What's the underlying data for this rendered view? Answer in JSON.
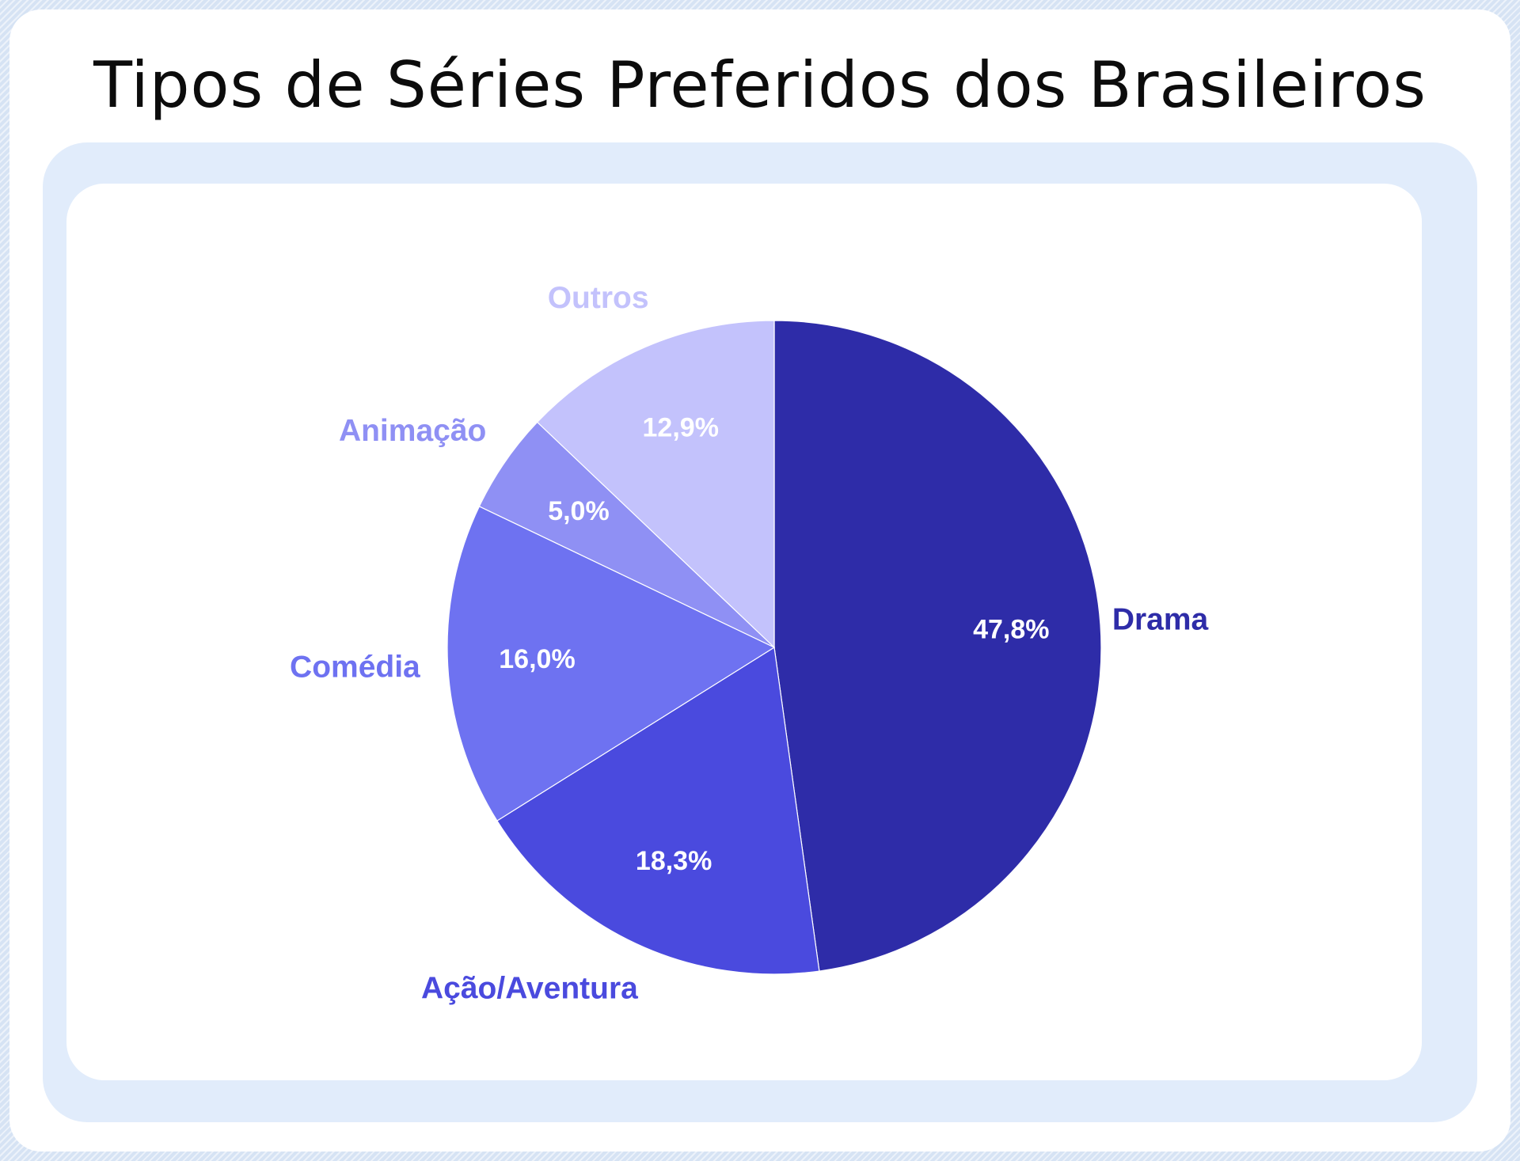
{
  "chart_data": {
    "type": "pie",
    "title": "Tipos de Séries Preferidos dos Brasileiros",
    "slices": [
      {
        "name": "Drama",
        "value": 47.8,
        "value_label": "47,8%",
        "color": "#2e2ca8"
      },
      {
        "name": "Ação/Aventura",
        "value": 18.3,
        "value_label": "18,3%",
        "color": "#4a4ade"
      },
      {
        "name": "Comédia",
        "value": 16.0,
        "value_label": "16,0%",
        "color": "#6e72f1"
      },
      {
        "name": "Animação",
        "value": 5.0,
        "value_label": "5,0%",
        "color": "#8f90f4"
      },
      {
        "name": "Outros",
        "value": 12.9,
        "value_label": "12,9%",
        "color": "#c3c2fc"
      }
    ],
    "start_angle": "12 o'clock",
    "direction": "clockwise",
    "labels": "category names outside slices, percentages inside"
  }
}
